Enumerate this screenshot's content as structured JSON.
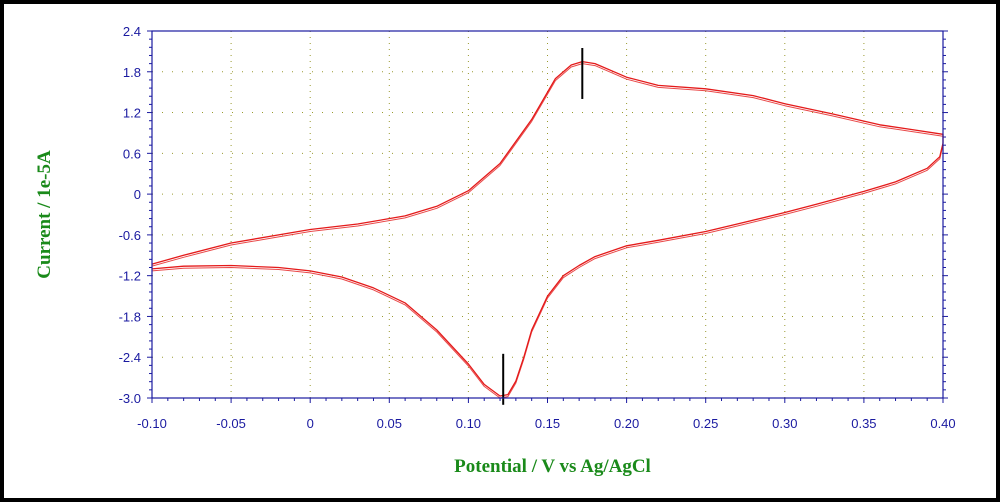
{
  "chart_data": {
    "type": "line",
    "title": "",
    "xlabel": "Potential / V vs Ag/AgCl",
    "ylabel": "Current / 1e-5A",
    "xlim": [
      -0.1,
      0.4
    ],
    "ylim": [
      -3.0,
      2.4
    ],
    "x_ticks": [
      "-0.10",
      "-0.05",
      "0",
      "0.05",
      "0.10",
      "0.15",
      "0.20",
      "0.25",
      "0.30",
      "0.35",
      "0.40"
    ],
    "y_ticks": [
      "2.4",
      "1.8",
      "1.2",
      "0.6",
      "0",
      "-0.6",
      "-1.2",
      "-1.8",
      "-2.4",
      "-3.0"
    ],
    "grid": true,
    "colors": {
      "curve": "#e41a1a",
      "axis": "#1a1aa0",
      "title": "#1a8a1a",
      "marker": "#000000"
    },
    "series": [
      {
        "name": "",
        "x": [
          -0.1,
          -0.08,
          -0.05,
          -0.02,
          0.0,
          0.03,
          0.06,
          0.08,
          0.1,
          0.12,
          0.14,
          0.155,
          0.165,
          0.172,
          0.18,
          0.2,
          0.22,
          0.25,
          0.28,
          0.3,
          0.33,
          0.36,
          0.38,
          0.4,
          0.4,
          0.398,
          0.39,
          0.37,
          0.35,
          0.32,
          0.3,
          0.27,
          0.25,
          0.22,
          0.2,
          0.18,
          0.17,
          0.16,
          0.15,
          0.14,
          0.135,
          0.13,
          0.125,
          0.12,
          0.11,
          0.1,
          0.08,
          0.06,
          0.04,
          0.02,
          0.0,
          -0.02,
          -0.05,
          -0.08,
          -0.1
        ],
        "y": [
          -1.03,
          -0.9,
          -0.72,
          -0.6,
          -0.52,
          -0.44,
          -0.32,
          -0.18,
          0.05,
          0.45,
          1.1,
          1.7,
          1.9,
          1.95,
          1.92,
          1.72,
          1.6,
          1.55,
          1.45,
          1.33,
          1.18,
          1.02,
          0.95,
          0.88,
          0.75,
          0.55,
          0.38,
          0.18,
          0.04,
          -0.15,
          -0.27,
          -0.44,
          -0.55,
          -0.68,
          -0.76,
          -0.92,
          -1.05,
          -1.2,
          -1.5,
          -2.0,
          -2.4,
          -2.75,
          -2.95,
          -2.97,
          -2.8,
          -2.5,
          -2.0,
          -1.6,
          -1.38,
          -1.22,
          -1.13,
          -1.08,
          -1.05,
          -1.06,
          -1.1
        ]
      }
    ],
    "markers": [
      {
        "x": 0.172,
        "y_from": 1.4,
        "y_to": 2.15
      },
      {
        "x": 0.122,
        "y_from": -3.1,
        "y_to": -2.35
      }
    ]
  }
}
